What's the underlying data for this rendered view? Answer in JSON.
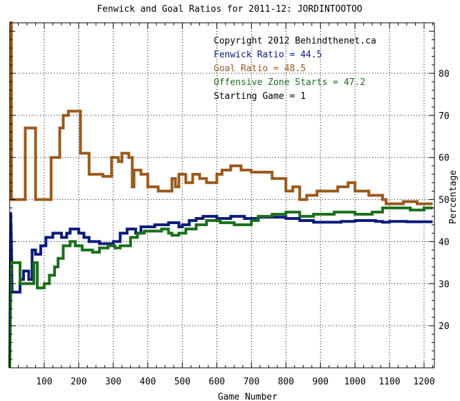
{
  "chart_data": {
    "type": "line",
    "title": "Fenwick and Goal Ratios for 2011-12: JORDINTOOTOO",
    "xlabel": "Game Number",
    "ylabel": "Percentage",
    "xlim": [
      0,
      1230
    ],
    "ylim": [
      10,
      92
    ],
    "x_ticks": [
      100,
      200,
      300,
      400,
      500,
      600,
      700,
      800,
      900,
      1000,
      1100,
      1200
    ],
    "y_ticks": [
      20,
      30,
      40,
      50,
      60,
      70,
      80
    ],
    "grid": true,
    "legend_position": "top-right",
    "annotations": [
      "Copyright 2012 Behindthenet.ca",
      "Starting Game = 1"
    ],
    "series": [
      {
        "name": "Fenwick Ratio = 44.5",
        "color": "#0a1a7a",
        "points": [
          [
            0,
            10
          ],
          [
            3,
            47
          ],
          [
            5,
            40
          ],
          [
            7,
            28
          ],
          [
            30,
            28
          ],
          [
            30,
            31
          ],
          [
            40,
            31
          ],
          [
            40,
            33
          ],
          [
            55,
            33
          ],
          [
            55,
            31
          ],
          [
            65,
            31
          ],
          [
            65,
            38
          ],
          [
            75,
            38
          ],
          [
            75,
            37
          ],
          [
            90,
            37
          ],
          [
            90,
            39
          ],
          [
            105,
            39
          ],
          [
            105,
            41
          ],
          [
            125,
            41
          ],
          [
            125,
            42
          ],
          [
            150,
            42
          ],
          [
            150,
            41
          ],
          [
            165,
            41
          ],
          [
            165,
            42
          ],
          [
            175,
            42
          ],
          [
            175,
            43
          ],
          [
            200,
            43
          ],
          [
            200,
            42
          ],
          [
            215,
            42
          ],
          [
            215,
            41
          ],
          [
            230,
            41
          ],
          [
            230,
            40
          ],
          [
            260,
            40
          ],
          [
            260,
            39.5
          ],
          [
            300,
            39.5
          ],
          [
            300,
            40
          ],
          [
            320,
            40
          ],
          [
            320,
            42
          ],
          [
            340,
            42
          ],
          [
            340,
            43
          ],
          [
            365,
            43
          ],
          [
            365,
            42
          ],
          [
            380,
            42
          ],
          [
            380,
            43.5
          ],
          [
            420,
            43.5
          ],
          [
            420,
            44
          ],
          [
            460,
            44
          ],
          [
            460,
            44.5
          ],
          [
            490,
            44.5
          ],
          [
            490,
            43.5
          ],
          [
            500,
            43.5
          ],
          [
            500,
            44
          ],
          [
            520,
            44
          ],
          [
            520,
            45
          ],
          [
            540,
            45
          ],
          [
            540,
            45.5
          ],
          [
            560,
            45.5
          ],
          [
            560,
            46
          ],
          [
            600,
            46
          ],
          [
            600,
            45.5
          ],
          [
            640,
            45.5
          ],
          [
            640,
            46
          ],
          [
            680,
            46
          ],
          [
            680,
            45.5
          ],
          [
            720,
            45.5
          ],
          [
            720,
            45.8
          ],
          [
            800,
            45.8
          ],
          [
            800,
            45.5
          ],
          [
            840,
            45.5
          ],
          [
            840,
            45
          ],
          [
            880,
            45
          ],
          [
            880,
            44.6
          ],
          [
            960,
            44.6
          ],
          [
            960,
            44.8
          ],
          [
            1000,
            44.8
          ],
          [
            1000,
            45
          ],
          [
            1060,
            45
          ],
          [
            1060,
            44.8
          ],
          [
            1080,
            44.8
          ],
          [
            1080,
            44.6
          ],
          [
            1100,
            44.6
          ],
          [
            1100,
            44.8
          ],
          [
            1150,
            44.8
          ],
          [
            1150,
            44.7
          ],
          [
            1225,
            44.7
          ]
        ]
      },
      {
        "name": "Goal Ratio = 48.5",
        "color": "#9a5a1e",
        "points": [
          [
            0,
            92
          ],
          [
            5,
            92
          ],
          [
            5,
            50
          ],
          [
            45,
            50
          ],
          [
            45,
            67
          ],
          [
            75,
            67
          ],
          [
            75,
            50
          ],
          [
            120,
            50
          ],
          [
            120,
            60
          ],
          [
            145,
            60
          ],
          [
            145,
            67
          ],
          [
            155,
            67
          ],
          [
            155,
            70
          ],
          [
            170,
            70
          ],
          [
            170,
            71
          ],
          [
            205,
            71
          ],
          [
            205,
            61
          ],
          [
            230,
            61
          ],
          [
            230,
            56
          ],
          [
            270,
            56
          ],
          [
            270,
            55.5
          ],
          [
            295,
            55.5
          ],
          [
            295,
            60
          ],
          [
            315,
            60
          ],
          [
            315,
            59
          ],
          [
            325,
            59
          ],
          [
            325,
            61
          ],
          [
            345,
            61
          ],
          [
            345,
            60
          ],
          [
            355,
            60
          ],
          [
            355,
            53
          ],
          [
            360,
            53
          ],
          [
            360,
            57
          ],
          [
            380,
            57
          ],
          [
            380,
            56
          ],
          [
            400,
            56
          ],
          [
            400,
            53
          ],
          [
            430,
            53
          ],
          [
            430,
            52
          ],
          [
            470,
            52
          ],
          [
            470,
            55
          ],
          [
            480,
            55
          ],
          [
            480,
            53
          ],
          [
            490,
            53
          ],
          [
            490,
            56
          ],
          [
            510,
            56
          ],
          [
            510,
            54
          ],
          [
            530,
            54
          ],
          [
            530,
            56
          ],
          [
            550,
            56
          ],
          [
            550,
            55
          ],
          [
            570,
            55
          ],
          [
            570,
            54
          ],
          [
            600,
            54
          ],
          [
            600,
            56
          ],
          [
            615,
            56
          ],
          [
            615,
            57
          ],
          [
            640,
            57
          ],
          [
            640,
            58
          ],
          [
            670,
            58
          ],
          [
            670,
            57
          ],
          [
            700,
            57
          ],
          [
            700,
            56.5
          ],
          [
            760,
            56.5
          ],
          [
            760,
            55
          ],
          [
            800,
            55
          ],
          [
            800,
            52
          ],
          [
            820,
            52
          ],
          [
            820,
            53
          ],
          [
            840,
            53
          ],
          [
            840,
            50
          ],
          [
            860,
            50
          ],
          [
            860,
            51
          ],
          [
            890,
            51
          ],
          [
            890,
            52
          ],
          [
            950,
            52
          ],
          [
            950,
            53
          ],
          [
            980,
            53
          ],
          [
            980,
            54
          ],
          [
            1000,
            54
          ],
          [
            1000,
            52
          ],
          [
            1040,
            52
          ],
          [
            1040,
            51
          ],
          [
            1080,
            51
          ],
          [
            1080,
            50
          ],
          [
            1090,
            50
          ],
          [
            1090,
            49
          ],
          [
            1140,
            49
          ],
          [
            1140,
            49.5
          ],
          [
            1180,
            49.5
          ],
          [
            1180,
            49
          ],
          [
            1225,
            49
          ]
        ]
      },
      {
        "name": "Offensive Zone Starts = 47.2",
        "color": "#1a6e1a",
        "points": [
          [
            0,
            10
          ],
          [
            3,
            28
          ],
          [
            5,
            35
          ],
          [
            30,
            35
          ],
          [
            30,
            30
          ],
          [
            70,
            30
          ],
          [
            70,
            35
          ],
          [
            80,
            35
          ],
          [
            80,
            29
          ],
          [
            100,
            29
          ],
          [
            100,
            30
          ],
          [
            115,
            30
          ],
          [
            115,
            32
          ],
          [
            130,
            32
          ],
          [
            130,
            34
          ],
          [
            140,
            34
          ],
          [
            140,
            36
          ],
          [
            155,
            36
          ],
          [
            155,
            39
          ],
          [
            175,
            39
          ],
          [
            175,
            40
          ],
          [
            190,
            40
          ],
          [
            190,
            39
          ],
          [
            210,
            39
          ],
          [
            210,
            38
          ],
          [
            240,
            38
          ],
          [
            240,
            37.5
          ],
          [
            260,
            37.5
          ],
          [
            260,
            38.5
          ],
          [
            285,
            38.5
          ],
          [
            285,
            39
          ],
          [
            305,
            39
          ],
          [
            305,
            38.5
          ],
          [
            320,
            38.5
          ],
          [
            320,
            39
          ],
          [
            350,
            39
          ],
          [
            350,
            41
          ],
          [
            370,
            41
          ],
          [
            370,
            42
          ],
          [
            390,
            42
          ],
          [
            390,
            42.5
          ],
          [
            440,
            42.5
          ],
          [
            440,
            43
          ],
          [
            460,
            43
          ],
          [
            460,
            42
          ],
          [
            470,
            42
          ],
          [
            470,
            41.5
          ],
          [
            490,
            41.5
          ],
          [
            490,
            42
          ],
          [
            510,
            42
          ],
          [
            510,
            43
          ],
          [
            540,
            43
          ],
          [
            540,
            44
          ],
          [
            570,
            44
          ],
          [
            570,
            45
          ],
          [
            610,
            45
          ],
          [
            610,
            44.5
          ],
          [
            650,
            44.5
          ],
          [
            650,
            44
          ],
          [
            700,
            44
          ],
          [
            700,
            45
          ],
          [
            720,
            45
          ],
          [
            720,
            46
          ],
          [
            760,
            46
          ],
          [
            760,
            46.5
          ],
          [
            800,
            46.5
          ],
          [
            800,
            47
          ],
          [
            840,
            47
          ],
          [
            840,
            46
          ],
          [
            880,
            46
          ],
          [
            880,
            46.5
          ],
          [
            940,
            46.5
          ],
          [
            940,
            47
          ],
          [
            1000,
            47
          ],
          [
            1000,
            46.5
          ],
          [
            1050,
            46.5
          ],
          [
            1050,
            47
          ],
          [
            1080,
            47
          ],
          [
            1080,
            48
          ],
          [
            1160,
            48
          ],
          [
            1160,
            47.5
          ],
          [
            1200,
            47.5
          ],
          [
            1200,
            48
          ],
          [
            1225,
            48
          ]
        ]
      }
    ]
  }
}
